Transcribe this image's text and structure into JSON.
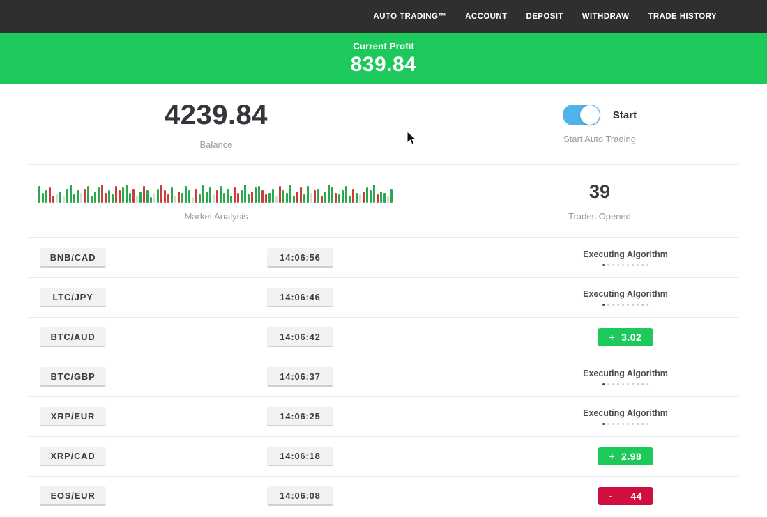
{
  "nav": {
    "items": [
      "AUTO TRADING™",
      "ACCOUNT",
      "DEPOSIT",
      "WITHDRAW",
      "TRADE HISTORY"
    ]
  },
  "profit_banner": {
    "label": "Current Profit",
    "value": "839.84"
  },
  "stats": {
    "balance": {
      "value": "4239.84",
      "label": "Balance"
    },
    "auto_trading": {
      "toggle_label": "Start",
      "label": "Start Auto Trading",
      "toggle_on": true
    },
    "market_analysis": {
      "label": "Market Analysis"
    },
    "trades_opened": {
      "value": "39",
      "label": "Trades Opened"
    }
  },
  "chart_data": {
    "type": "bar",
    "title": "Market Analysis",
    "legend": "decorative mini bar strip, green/red/pale bars, bottom-aligned",
    "colors": {
      "g": "#2aa84e",
      "r": "#cc3b3d",
      "l": "#d9ddd9"
    },
    "bars": [
      [
        "g",
        24
      ],
      [
        "g",
        14
      ],
      [
        "g",
        18
      ],
      [
        "r",
        22
      ],
      [
        "r",
        10
      ],
      [
        "l",
        12
      ],
      [
        "g",
        16
      ],
      [
        "l",
        10
      ],
      [
        "g",
        20
      ],
      [
        "g",
        26
      ],
      [
        "g",
        12
      ],
      [
        "g",
        18
      ],
      [
        "l",
        14
      ],
      [
        "r",
        20
      ],
      [
        "g",
        24
      ],
      [
        "g",
        10
      ],
      [
        "g",
        16
      ],
      [
        "g",
        22
      ],
      [
        "r",
        26
      ],
      [
        "r",
        14
      ],
      [
        "g",
        18
      ],
      [
        "g",
        12
      ],
      [
        "r",
        24
      ],
      [
        "r",
        18
      ],
      [
        "g",
        22
      ],
      [
        "g",
        26
      ],
      [
        "g",
        14
      ],
      [
        "r",
        20
      ],
      [
        "l",
        10
      ],
      [
        "g",
        16
      ],
      [
        "r",
        24
      ],
      [
        "g",
        18
      ],
      [
        "g",
        8
      ],
      [
        "l",
        14
      ],
      [
        "g",
        20
      ],
      [
        "r",
        26
      ],
      [
        "r",
        18
      ],
      [
        "r",
        12
      ],
      [
        "g",
        22
      ],
      [
        "l",
        10
      ],
      [
        "r",
        16
      ],
      [
        "g",
        14
      ],
      [
        "g",
        24
      ],
      [
        "g",
        18
      ],
      [
        "l",
        8
      ],
      [
        "r",
        20
      ],
      [
        "g",
        12
      ],
      [
        "g",
        26
      ],
      [
        "g",
        16
      ],
      [
        "g",
        22
      ],
      [
        "l",
        12
      ],
      [
        "r",
        18
      ],
      [
        "g",
        24
      ],
      [
        "g",
        14
      ],
      [
        "g",
        20
      ],
      [
        "g",
        10
      ],
      [
        "r",
        22
      ],
      [
        "r",
        14
      ],
      [
        "g",
        18
      ],
      [
        "g",
        26
      ],
      [
        "g",
        12
      ],
      [
        "r",
        16
      ],
      [
        "g",
        22
      ],
      [
        "g",
        24
      ],
      [
        "r",
        18
      ],
      [
        "r",
        12
      ],
      [
        "g",
        14
      ],
      [
        "g",
        20
      ],
      [
        "l",
        10
      ],
      [
        "r",
        24
      ],
      [
        "g",
        18
      ],
      [
        "g",
        14
      ],
      [
        "g",
        26
      ],
      [
        "g",
        10
      ],
      [
        "r",
        16
      ],
      [
        "r",
        22
      ],
      [
        "g",
        12
      ],
      [
        "g",
        24
      ],
      [
        "l",
        14
      ],
      [
        "r",
        18
      ],
      [
        "g",
        20
      ],
      [
        "r",
        10
      ],
      [
        "g",
        16
      ],
      [
        "g",
        26
      ],
      [
        "g",
        22
      ],
      [
        "r",
        14
      ],
      [
        "g",
        12
      ],
      [
        "g",
        18
      ],
      [
        "g",
        24
      ],
      [
        "g",
        10
      ],
      [
        "r",
        20
      ],
      [
        "g",
        14
      ],
      [
        "l",
        12
      ],
      [
        "r",
        16
      ],
      [
        "g",
        22
      ],
      [
        "g",
        18
      ],
      [
        "g",
        26
      ],
      [
        "r",
        12
      ],
      [
        "g",
        16
      ],
      [
        "g",
        14
      ],
      [
        "l",
        10
      ],
      [
        "g",
        20
      ]
    ]
  },
  "trades": {
    "executing_label": "Executing Algorithm",
    "rows": [
      {
        "pair": "BNB/CAD",
        "time": "14:06:56",
        "status": "executing",
        "result": ""
      },
      {
        "pair": "LTC/JPY",
        "time": "14:06:46",
        "status": "executing",
        "result": ""
      },
      {
        "pair": "BTC/AUD",
        "time": "14:06:42",
        "status": "profit",
        "result": "+  3.02"
      },
      {
        "pair": "BTC/GBP",
        "time": "14:06:37",
        "status": "executing",
        "result": ""
      },
      {
        "pair": "XRP/EUR",
        "time": "14:06:25",
        "status": "executing",
        "result": ""
      },
      {
        "pair": "XRP/CAD",
        "time": "14:06:18",
        "status": "profit",
        "result": "+  2.98"
      },
      {
        "pair": "EOS/EUR",
        "time": "14:06:08",
        "status": "loss",
        "result": "-      44"
      }
    ]
  },
  "colors": {
    "banner_green": "#1ec95b",
    "badge_green": "#1ec95b",
    "badge_red": "#d00f3f",
    "toggle_blue": "#4fb3ec",
    "nav_bg": "#2f2f2f"
  }
}
